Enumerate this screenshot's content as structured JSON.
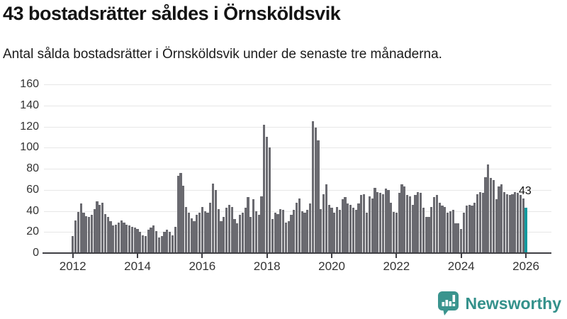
{
  "header": {
    "title": "43 bostadsrätter såldes i Örnsköldsvik",
    "subtitle": "Antal sålda bostadsrätter i Örnsköldsvik under de senaste tre månaderna."
  },
  "chart_data": {
    "type": "bar",
    "title": "43 bostadsrätter såldes i Örnsköldsvik",
    "subtitle": "Antal sålda bostadsrätter i Örnsköldsvik under de senaste tre månaderna.",
    "x_start": "2012-01",
    "x_end": "2026-01",
    "x_frequency": "monthly",
    "x_tick_labels": [
      "2012",
      "2014",
      "2016",
      "2018",
      "2020",
      "2022",
      "2024",
      "2026"
    ],
    "y_ticks": [
      0,
      20,
      40,
      60,
      80,
      100,
      120,
      140,
      160
    ],
    "ylim": [
      0,
      160
    ],
    "grid": true,
    "bar_color": "#6a6a70",
    "highlight_color": "#12999f",
    "highlight_index": 168,
    "annotation": {
      "text": "43",
      "value": 43
    },
    "values": [
      16,
      31,
      39,
      47,
      38,
      35,
      34,
      36,
      42,
      49,
      46,
      48,
      37,
      34,
      30,
      26,
      27,
      29,
      31,
      29,
      27,
      26,
      25,
      24,
      23,
      20,
      17,
      16,
      22,
      24,
      26,
      21,
      15,
      16,
      20,
      22,
      20,
      17,
      25,
      73,
      76,
      64,
      44,
      38,
      33,
      30,
      36,
      38,
      44,
      40,
      38,
      48,
      66,
      60,
      42,
      30,
      34,
      43,
      46,
      44,
      32,
      28,
      36,
      38,
      43,
      53,
      34,
      51,
      40,
      36,
      54,
      122,
      110,
      100,
      32,
      38,
      37,
      42,
      41,
      29,
      30,
      36,
      41,
      48,
      52,
      40,
      38,
      41,
      47,
      125,
      119,
      107,
      42,
      56,
      65,
      46,
      43,
      38,
      44,
      41,
      51,
      53,
      47,
      46,
      43,
      41,
      47,
      55,
      56,
      38,
      54,
      52,
      62,
      58,
      57,
      56,
      61,
      60,
      48,
      39,
      38,
      57,
      65,
      63,
      55,
      54,
      46,
      55,
      58,
      57,
      43,
      34,
      34,
      44,
      53,
      55,
      48,
      45,
      44,
      38,
      40,
      41,
      28,
      28,
      23,
      38,
      45,
      46,
      45,
      48,
      56,
      58,
      57,
      72,
      84,
      71,
      69,
      51,
      63,
      65,
      58,
      56,
      55,
      56,
      58,
      57,
      55,
      52,
      43
    ]
  },
  "footer": {
    "brand": "Newsworthy",
    "logo_color": "#34918b",
    "logo_icon": "newsworthy-chart-bubble-icon"
  }
}
